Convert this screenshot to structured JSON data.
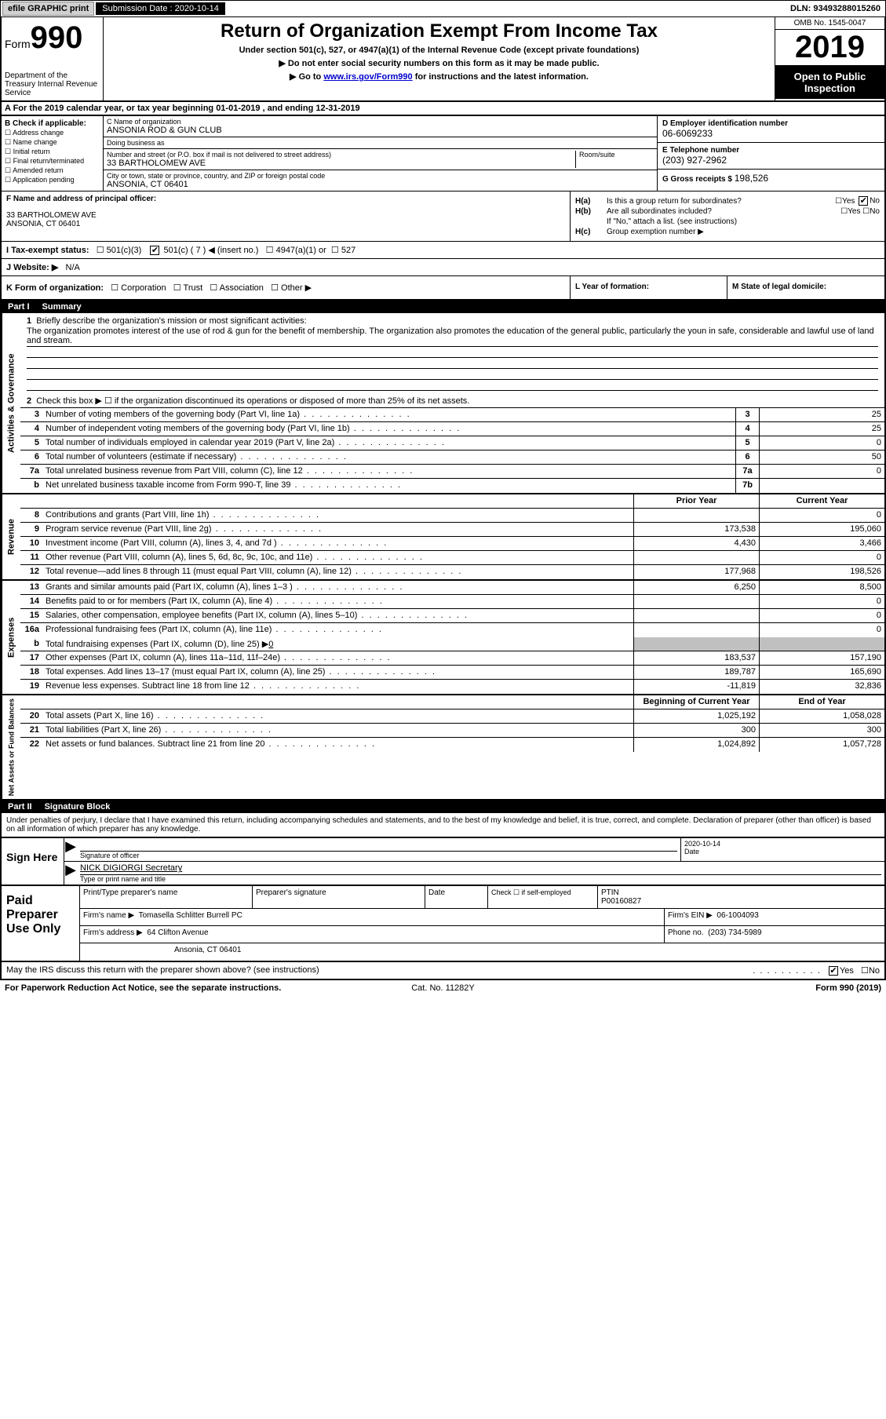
{
  "top_bar": {
    "efile": "efile GRAPHIC print",
    "submission_label": "Submission Date : 2020-10-14",
    "dln": "DLN: 93493288015260"
  },
  "header": {
    "form_word": "Form",
    "form_num": "990",
    "dept": "Department of the Treasury Internal Revenue Service",
    "title": "Return of Organization Exempt From Income Tax",
    "subtitle": "Under section 501(c), 527, or 4947(a)(1) of the Internal Revenue Code (except private foundations)",
    "instr1": "▶ Do not enter social security numbers on this form as it may be made public.",
    "instr2_pre": "▶ Go to ",
    "instr2_link": "www.irs.gov/Form990",
    "instr2_post": " for instructions and the latest information.",
    "omb": "OMB No. 1545-0047",
    "year": "2019",
    "open": "Open to Public Inspection"
  },
  "section_a": "A For the 2019 calendar year, or tax year beginning 01-01-2019   , and ending 12-31-2019",
  "box_b": {
    "header": "B Check if applicable:",
    "opts": [
      "Address change",
      "Name change",
      "Initial return",
      "Final return/terminated",
      "Amended return",
      "Application pending"
    ]
  },
  "box_c": {
    "name_label": "C Name of organization",
    "name": "ANSONIA ROD & GUN CLUB",
    "dba_label": "Doing business as",
    "dba": "",
    "addr_label": "Number and street (or P.O. box if mail is not delivered to street address)",
    "room_label": "Room/suite",
    "addr": "33 BARTHOLOMEW AVE",
    "city_label": "City or town, state or province, country, and ZIP or foreign postal code",
    "city": "ANSONIA, CT  06401"
  },
  "box_d": {
    "ein_label": "D Employer identification number",
    "ein": "06-6069233",
    "tel_label": "E Telephone number",
    "tel": "(203) 927-2962",
    "gross_label": "G Gross receipts $",
    "gross": "198,526"
  },
  "box_f": {
    "label": "F  Name and address of principal officer:",
    "name": "",
    "addr1": "33 BARTHOLOMEW AVE",
    "addr2": "ANSONIA, CT  06401"
  },
  "box_h": {
    "a_label": "H(a)",
    "a_text": "Is this a group return for subordinates?",
    "b_label": "H(b)",
    "b_text": "Are all subordinates included?",
    "note": "If \"No,\" attach a list. (see instructions)",
    "c_label": "H(c)",
    "c_text": "Group exemption number ▶"
  },
  "row_i": {
    "label": "I  Tax-exempt status:",
    "opt1": "501(c)(3)",
    "opt2_pre": "501(c) ( ",
    "opt2_num": "7",
    "opt2_post": " ) ◀ (insert no.)",
    "opt3": "4947(a)(1) or",
    "opt4": "527"
  },
  "row_j": {
    "label": "J  Website: ▶",
    "val": "N/A"
  },
  "row_k": {
    "k_label": "K Form of organization:",
    "opts": [
      "Corporation",
      "Trust",
      "Association",
      "Other ▶"
    ],
    "l_label": "L Year of formation:",
    "l_val": "",
    "m_label": "M State of legal domicile:",
    "m_val": ""
  },
  "part1": {
    "num": "Part I",
    "title": "Summary",
    "line1_label": "Briefly describe the organization's mission or most significant activities:",
    "line1_text": "The organization promotes interest of the use of rod & gun for the benefit of membership. The organization also promotes the education of the general public, particularly the youn in safe, considerable and lawful use of land and stream.",
    "line2": "Check this box ▶ ☐  if the organization discontinued its operations or disposed of more than 25% of its net assets.",
    "side_activities": "Activities & Governance",
    "side_revenue": "Revenue",
    "side_expenses": "Expenses",
    "side_net": "Net Assets or Fund Balances",
    "rows_gov": [
      {
        "n": "3",
        "t": "Number of voting members of the governing body (Part VI, line 1a)",
        "b": "3",
        "v": "25"
      },
      {
        "n": "4",
        "t": "Number of independent voting members of the governing body (Part VI, line 1b)",
        "b": "4",
        "v": "25"
      },
      {
        "n": "5",
        "t": "Total number of individuals employed in calendar year 2019 (Part V, line 2a)",
        "b": "5",
        "v": "0"
      },
      {
        "n": "6",
        "t": "Total number of volunteers (estimate if necessary)",
        "b": "6",
        "v": "50"
      },
      {
        "n": "7a",
        "t": "Total unrelated business revenue from Part VIII, column (C), line 12",
        "b": "7a",
        "v": "0"
      },
      {
        "n": "b",
        "t": "Net unrelated business taxable income from Form 990-T, line 39",
        "b": "7b",
        "v": ""
      }
    ],
    "header_prior": "Prior Year",
    "header_current": "Current Year",
    "rows_rev": [
      {
        "n": "8",
        "t": "Contributions and grants (Part VIII, line 1h)",
        "p": "",
        "c": "0"
      },
      {
        "n": "9",
        "t": "Program service revenue (Part VIII, line 2g)",
        "p": "173,538",
        "c": "195,060"
      },
      {
        "n": "10",
        "t": "Investment income (Part VIII, column (A), lines 3, 4, and 7d )",
        "p": "4,430",
        "c": "3,466"
      },
      {
        "n": "11",
        "t": "Other revenue (Part VIII, column (A), lines 5, 6d, 8c, 9c, 10c, and 11e)",
        "p": "",
        "c": "0"
      },
      {
        "n": "12",
        "t": "Total revenue—add lines 8 through 11 (must equal Part VIII, column (A), line 12)",
        "p": "177,968",
        "c": "198,526"
      }
    ],
    "rows_exp": [
      {
        "n": "13",
        "t": "Grants and similar amounts paid (Part IX, column (A), lines 1–3 )",
        "p": "6,250",
        "c": "8,500"
      },
      {
        "n": "14",
        "t": "Benefits paid to or for members (Part IX, column (A), line 4)",
        "p": "",
        "c": "0"
      },
      {
        "n": "15",
        "t": "Salaries, other compensation, employee benefits (Part IX, column (A), lines 5–10)",
        "p": "",
        "c": "0"
      },
      {
        "n": "16a",
        "t": "Professional fundraising fees (Part IX, column (A), line 11e)",
        "p": "",
        "c": "0"
      }
    ],
    "row_16b_label": "Total fundraising expenses (Part IX, column (D), line 25) ▶",
    "row_16b_val": "0",
    "rows_exp2": [
      {
        "n": "17",
        "t": "Other expenses (Part IX, column (A), lines 11a–11d, 11f–24e)",
        "p": "183,537",
        "c": "157,190"
      },
      {
        "n": "18",
        "t": "Total expenses. Add lines 13–17 (must equal Part IX, column (A), line 25)",
        "p": "189,787",
        "c": "165,690"
      },
      {
        "n": "19",
        "t": "Revenue less expenses. Subtract line 18 from line 12",
        "p": "-11,819",
        "c": "32,836"
      }
    ],
    "header_begin": "Beginning of Current Year",
    "header_end": "End of Year",
    "rows_net": [
      {
        "n": "20",
        "t": "Total assets (Part X, line 16)",
        "p": "1,025,192",
        "c": "1,058,028"
      },
      {
        "n": "21",
        "t": "Total liabilities (Part X, line 26)",
        "p": "300",
        "c": "300"
      },
      {
        "n": "22",
        "t": "Net assets or fund balances. Subtract line 21 from line 20",
        "p": "1,024,892",
        "c": "1,057,728"
      }
    ]
  },
  "part2": {
    "num": "Part II",
    "title": "Signature Block",
    "declaration": "Under penalties of perjury, I declare that I have examined this return, including accompanying schedules and statements, and to the best of my knowledge and belief, it is true, correct, and complete. Declaration of preparer (other than officer) is based on all information of which preparer has any knowledge.",
    "sign_here": "Sign Here",
    "sig_officer_label": "Signature of officer",
    "sig_date_label": "Date",
    "sig_date": "2020-10-14",
    "officer_name": "NICK DIGIORGI Secretary",
    "officer_label": "Type or print name and title",
    "paid_label": "Paid Preparer Use Only",
    "prep_name_label": "Print/Type preparer's name",
    "prep_sig_label": "Preparer's signature",
    "date_label": "Date",
    "check_label": "Check ☐ if self-employed",
    "ptin_label": "PTIN",
    "ptin": "P00160827",
    "firm_name_label": "Firm's name    ▶",
    "firm_name": "Tomasella Schlitter Burrell PC",
    "firm_ein_label": "Firm's EIN ▶",
    "firm_ein": "06-1004093",
    "firm_addr_label": "Firm's address ▶",
    "firm_addr1": "64 Clifton Avenue",
    "firm_addr2": "Ansonia, CT  06401",
    "phone_label": "Phone no.",
    "phone": "(203) 734-5989",
    "discuss": "May the IRS discuss this return with the preparer shown above? (see instructions)",
    "yes": "Yes",
    "no": "No"
  },
  "footer": {
    "left": "For Paperwork Reduction Act Notice, see the separate instructions.",
    "center": "Cat. No. 11282Y",
    "right": "Form 990 (2019)"
  }
}
